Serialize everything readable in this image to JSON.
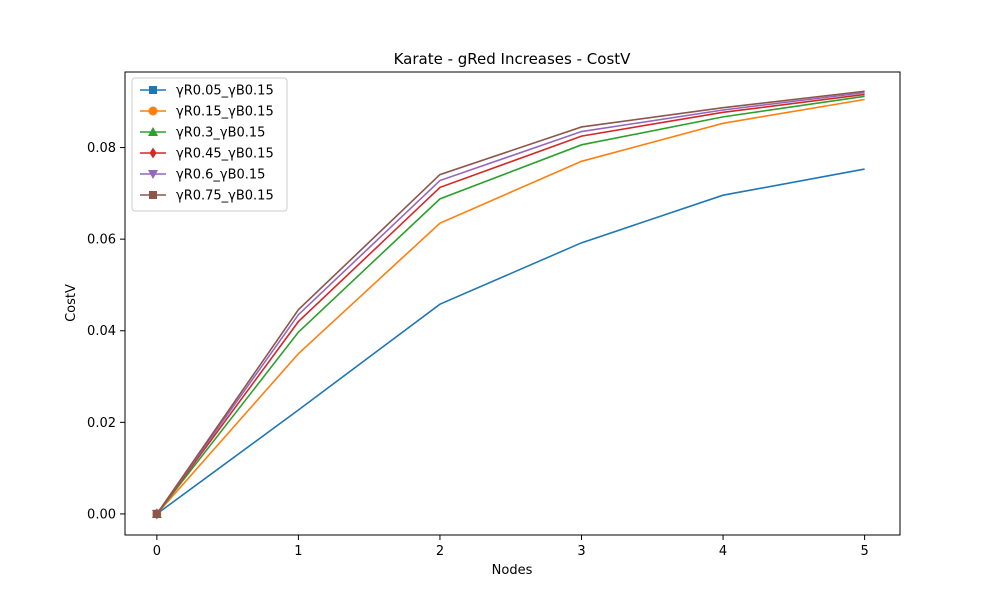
{
  "chart_data": {
    "type": "line",
    "title": "Karate - gRed Increases - CostV",
    "xlabel": "Nodes",
    "ylabel": "CostV",
    "x": [
      0,
      1,
      2,
      3,
      4,
      5
    ],
    "xticks": [
      "0",
      "1",
      "2",
      "3",
      "4",
      "5"
    ],
    "yticks": [
      "0.00",
      "0.02",
      "0.04",
      "0.06",
      "0.08"
    ],
    "xlim": [
      -0.225,
      5.25
    ],
    "ylim": [
      -0.0046,
      0.0965
    ],
    "grid": false,
    "legend_position": "upper-left",
    "series": [
      {
        "name": "γR0.05_γB0.15",
        "color": "#1f77b4",
        "marker": "square",
        "values": [
          0.0,
          0.0227,
          0.0458,
          0.0592,
          0.0696,
          0.0753
        ]
      },
      {
        "name": "γR0.15_γB0.15",
        "color": "#ff7f0e",
        "marker": "circle",
        "values": [
          0.0,
          0.035,
          0.0635,
          0.077,
          0.0853,
          0.0905
        ]
      },
      {
        "name": "γR0.3_γB0.15",
        "color": "#2ca02c",
        "marker": "triangle-up",
        "values": [
          0.0,
          0.0397,
          0.0688,
          0.0806,
          0.0867,
          0.0912
        ]
      },
      {
        "name": "γR0.45_γB0.15",
        "color": "#d62728",
        "marker": "diamond",
        "values": [
          0.0,
          0.042,
          0.0713,
          0.0825,
          0.0877,
          0.0916
        ]
      },
      {
        "name": "γR0.6_γB0.15",
        "color": "#9467bd",
        "marker": "triangle-down",
        "values": [
          0.0,
          0.0435,
          0.0728,
          0.0835,
          0.0882,
          0.092
        ]
      },
      {
        "name": "γR0.75_γB0.15",
        "color": "#8c564b",
        "marker": "square",
        "values": [
          0.0,
          0.0446,
          0.0741,
          0.0845,
          0.0887,
          0.0923
        ]
      }
    ]
  }
}
